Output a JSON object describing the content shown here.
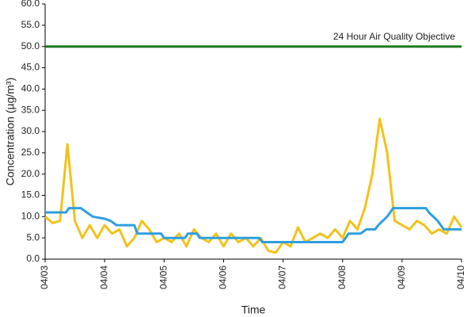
{
  "chart_data": {
    "type": "line",
    "x_label": "Time",
    "y_label": "Concentration (µg/m³)",
    "annotation": "24 Hour Air Quality Objective",
    "xlim": [
      0,
      7
    ],
    "xticks": [
      {
        "value": 0,
        "label": "04/03"
      },
      {
        "value": 1,
        "label": "04/04"
      },
      {
        "value": 2,
        "label": "04/05"
      },
      {
        "value": 3,
        "label": "04/06"
      },
      {
        "value": 4,
        "label": "04/07"
      },
      {
        "value": 5,
        "label": "04/08"
      },
      {
        "value": 6,
        "label": "04/09"
      },
      {
        "value": 7,
        "label": "04/10"
      }
    ],
    "ylim": [
      0,
      60
    ],
    "yticks": [
      {
        "value": 0,
        "label": "0.0"
      },
      {
        "value": 5,
        "label": "5.0"
      },
      {
        "value": 10,
        "label": "10.0"
      },
      {
        "value": 15,
        "label": "15.0"
      },
      {
        "value": 20,
        "label": "20.0"
      },
      {
        "value": 25,
        "label": "25.0"
      },
      {
        "value": 30,
        "label": "30.0"
      },
      {
        "value": 35,
        "label": "35.0"
      },
      {
        "value": 40,
        "label": "40.0"
      },
      {
        "value": 45,
        "label": "45.0"
      },
      {
        "value": 50,
        "label": "50.0"
      },
      {
        "value": 55,
        "label": "55.0"
      },
      {
        "value": 60,
        "label": "60.0"
      }
    ],
    "series": [
      {
        "color": "#f2c21b",
        "x": [
          0,
          0.125,
          0.25,
          0.375,
          0.5,
          0.625,
          0.75,
          0.875,
          1.0,
          1.125,
          1.25,
          1.375,
          1.5,
          1.625,
          1.75,
          1.875,
          2.0,
          2.125,
          2.25,
          2.375,
          2.5,
          2.625,
          2.75,
          2.875,
          3.0,
          3.125,
          3.25,
          3.375,
          3.5,
          3.625,
          3.75,
          3.875,
          4.0,
          4.125,
          4.25,
          4.375,
          4.5,
          4.625,
          4.75,
          4.875,
          5.0,
          5.125,
          5.25,
          5.375,
          5.5,
          5.625,
          5.75,
          5.875,
          6.0,
          6.125,
          6.25,
          6.375,
          6.5,
          6.625,
          6.75,
          6.875,
          7.0
        ],
        "values": [
          10,
          8.5,
          9,
          27,
          9,
          5,
          8,
          5,
          8,
          6,
          7,
          3,
          5,
          9,
          7,
          4,
          5,
          4,
          6,
          3,
          7,
          5,
          4,
          6,
          3,
          6,
          4,
          5,
          3,
          5,
          2,
          1.5,
          4,
          3,
          7.5,
          4,
          5,
          6,
          5,
          7,
          5,
          9,
          7,
          12,
          20,
          33,
          25,
          9,
          8,
          7,
          9,
          8,
          6,
          7,
          6,
          10,
          7.5
        ]
      },
      {
        "color": "#2e9fe0",
        "x": [
          0,
          0.35,
          0.4,
          0.6,
          0.7,
          0.8,
          1.0,
          1.1,
          1.2,
          1.5,
          1.55,
          1.95,
          2.0,
          2.35,
          2.4,
          2.55,
          2.6,
          3.6,
          3.65,
          5.0,
          5.05,
          5.1,
          5.3,
          5.4,
          5.55,
          5.6,
          5.75,
          5.85,
          6.4,
          6.45,
          6.6,
          6.7,
          7.0
        ],
        "values": [
          11,
          11,
          12,
          12,
          11,
          10,
          9.5,
          9,
          8,
          8,
          6,
          6,
          5,
          5,
          6,
          6,
          5,
          5,
          4,
          4,
          5,
          6,
          6,
          7,
          7,
          8,
          10,
          12,
          12,
          11,
          9,
          7,
          7
        ]
      },
      {
        "color": "#1e7a1e",
        "x": [
          0,
          7
        ],
        "values": [
          50,
          50
        ]
      }
    ]
  }
}
